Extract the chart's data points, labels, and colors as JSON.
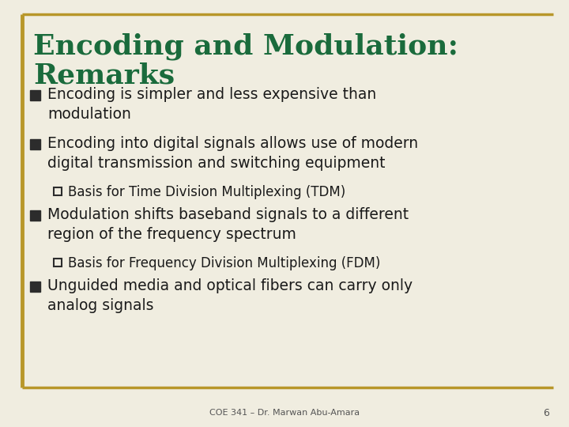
{
  "title_line1": "Encoding and Modulation:",
  "title_line2": "Remarks",
  "title_color": "#1a6b3c",
  "background_color": "#f0ede0",
  "border_color": "#b8972a",
  "bullet_color": "#1a1a1a",
  "footer_text": "COE 341 – Dr. Marwan Abu-Amara",
  "footer_number": "6",
  "bullets": [
    {
      "level": 1,
      "text": "Encoding is simpler and less expensive than\nmodulation"
    },
    {
      "level": 1,
      "text": "Encoding into digital signals allows use of modern\ndigital transmission and switching equipment"
    },
    {
      "level": 2,
      "text": "Basis for Time Division Multiplexing (TDM)"
    },
    {
      "level": 1,
      "text": "Modulation shifts baseband signals to a different\nregion of the frequency spectrum"
    },
    {
      "level": 2,
      "text": "Basis for Frequency Division Multiplexing (FDM)"
    },
    {
      "level": 1,
      "text": "Unguided media and optical fibers can carry only\nanalog signals"
    }
  ]
}
